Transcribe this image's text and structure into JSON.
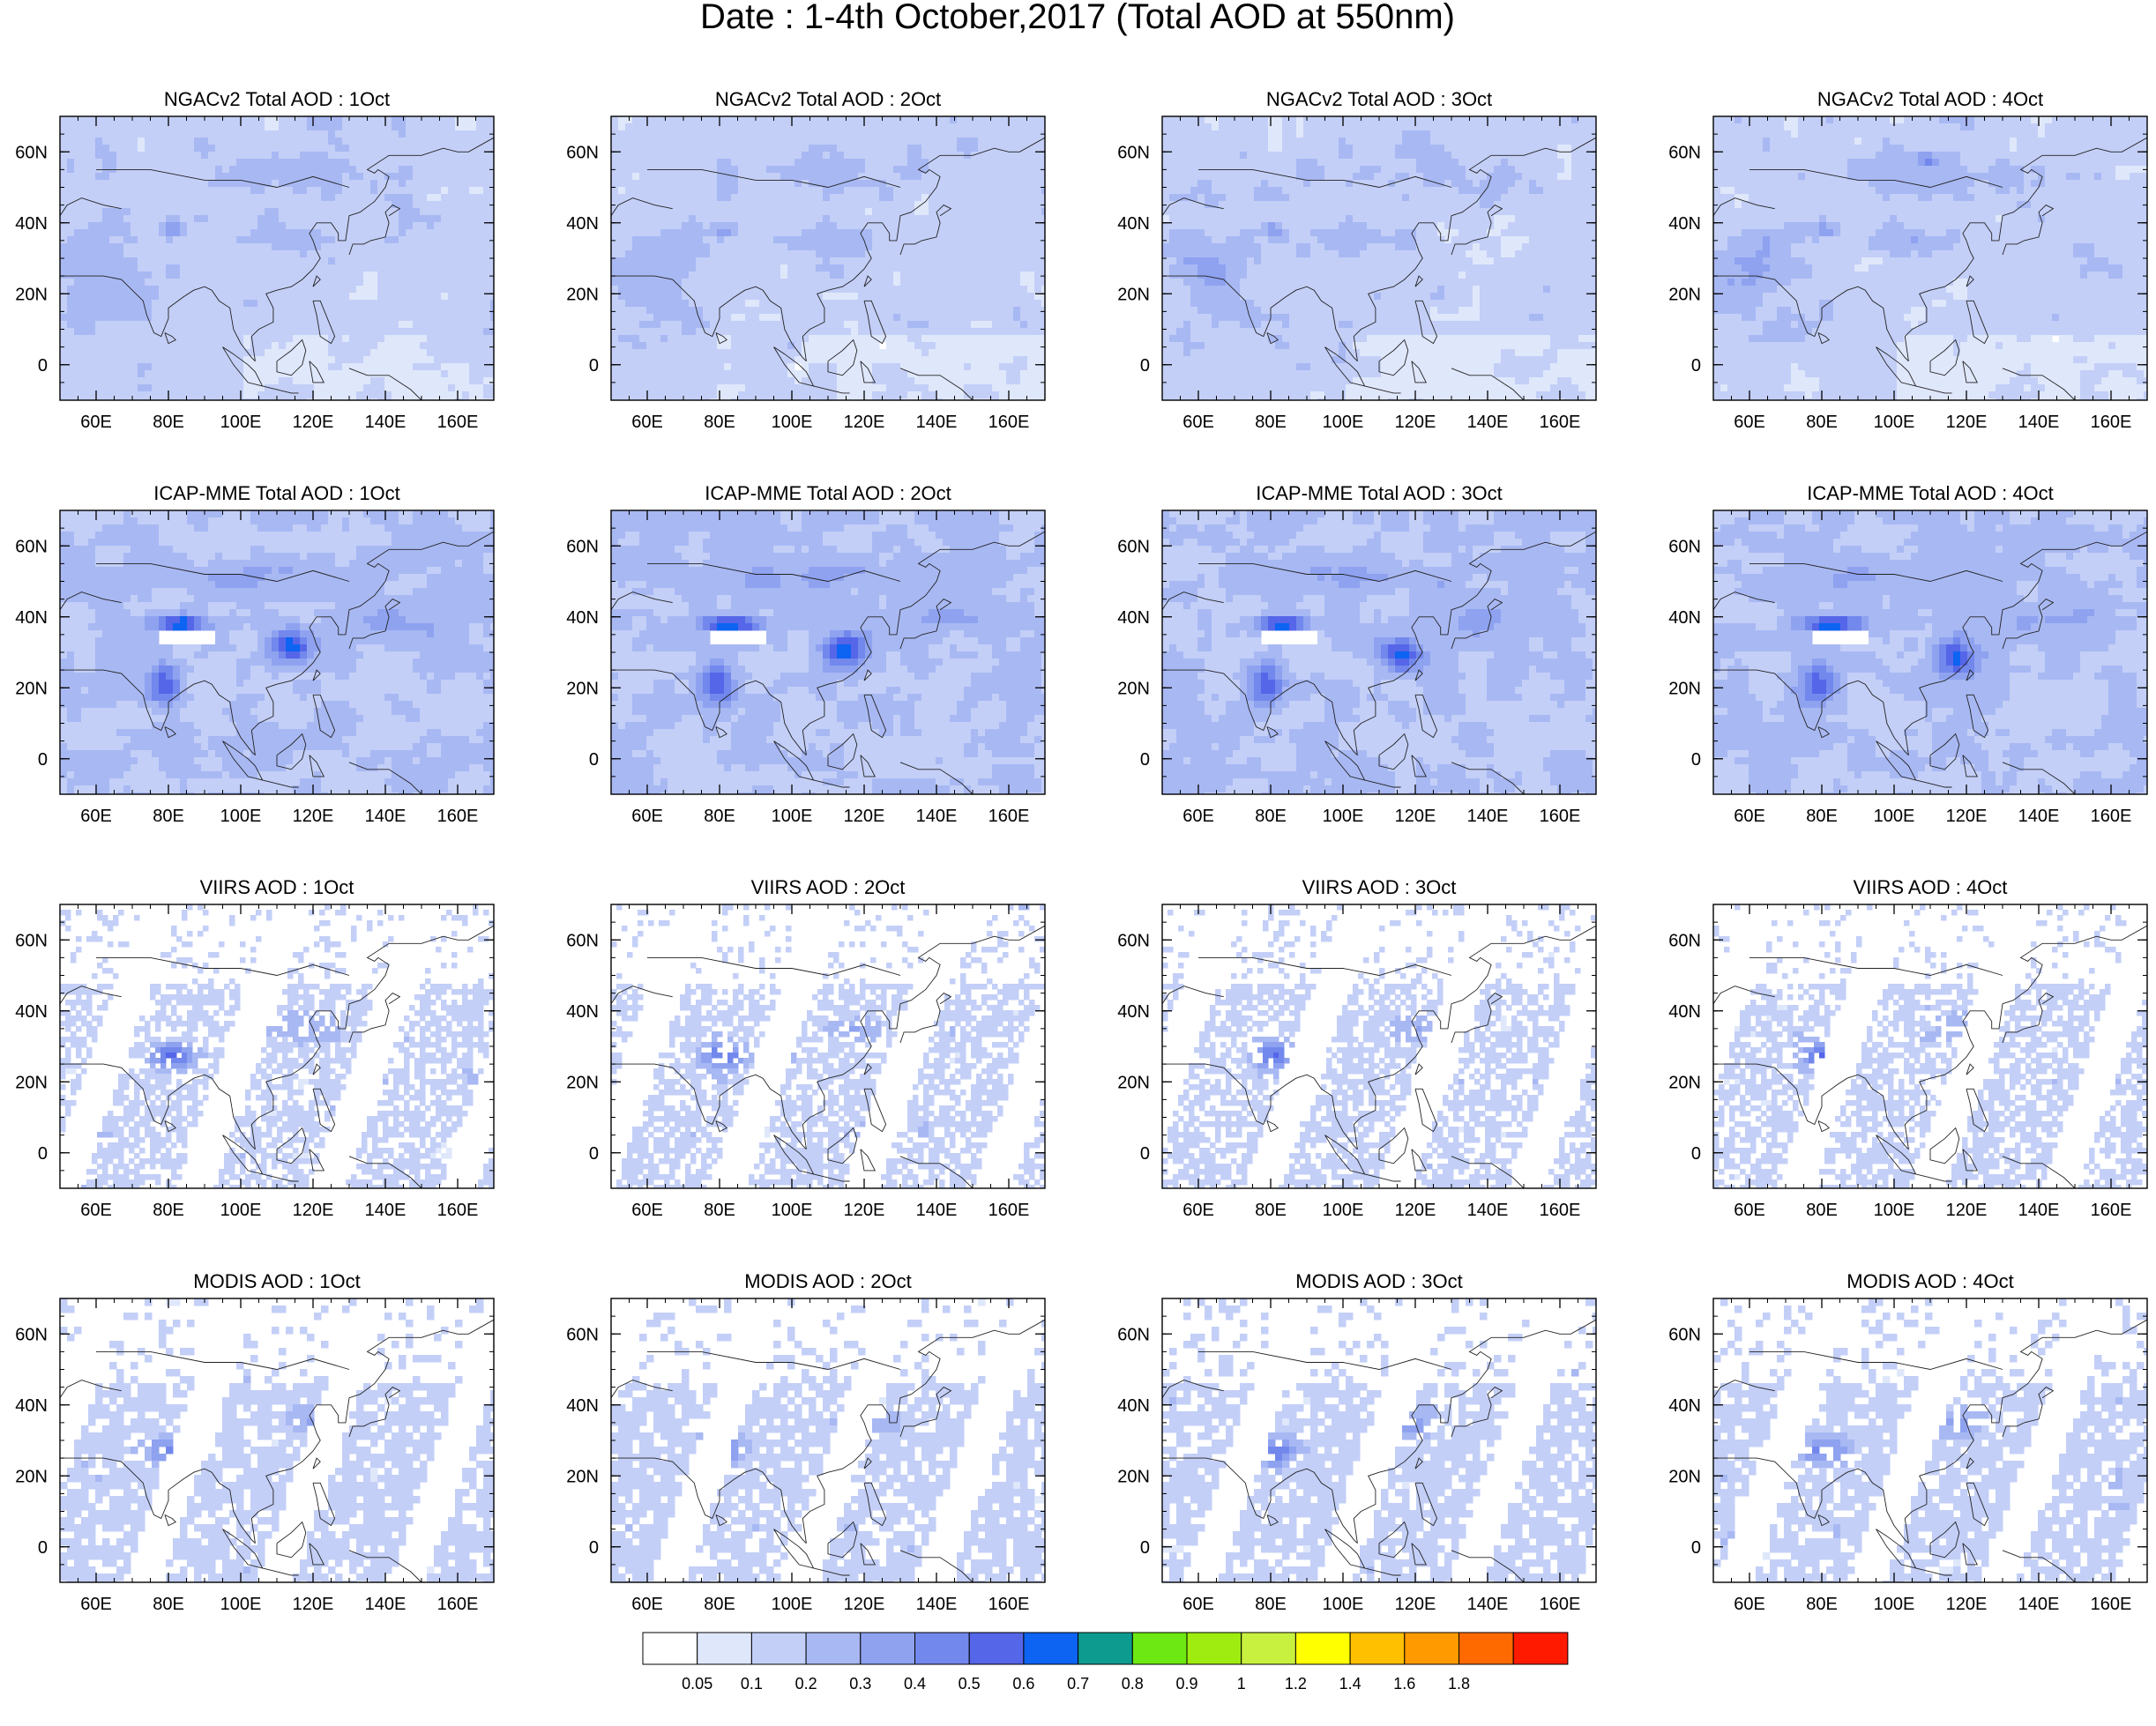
{
  "figure_title": "Date : 1-4th October,2017 (Total AOD at 550nm)",
  "panels": [
    {
      "title": "NGACv2 Total AOD : 1Oct",
      "row": 0,
      "style": "model",
      "seed": 11
    },
    {
      "title": "NGACv2 Total AOD : 2Oct",
      "row": 0,
      "style": "model",
      "seed": 12
    },
    {
      "title": "NGACv2 Total AOD : 3Oct",
      "row": 0,
      "style": "model",
      "seed": 13
    },
    {
      "title": "NGACv2 Total AOD : 4Oct",
      "row": 0,
      "style": "model",
      "seed": 14
    },
    {
      "title": "ICAP-MME Total AOD : 1Oct",
      "row": 1,
      "style": "ensemble",
      "seed": 21
    },
    {
      "title": "ICAP-MME Total AOD : 2Oct",
      "row": 1,
      "style": "ensemble",
      "seed": 22
    },
    {
      "title": "ICAP-MME Total AOD : 3Oct",
      "row": 1,
      "style": "ensemble",
      "seed": 23
    },
    {
      "title": "ICAP-MME Total AOD : 4Oct",
      "row": 1,
      "style": "ensemble",
      "seed": 24
    },
    {
      "title": "VIIRS AOD : 1Oct",
      "row": 2,
      "style": "viirs",
      "seed": 31
    },
    {
      "title": "VIIRS AOD : 2Oct",
      "row": 2,
      "style": "viirs",
      "seed": 32
    },
    {
      "title": "VIIRS AOD : 3Oct",
      "row": 2,
      "style": "viirs",
      "seed": 33
    },
    {
      "title": "VIIRS AOD : 4Oct",
      "row": 2,
      "style": "viirs",
      "seed": 34
    },
    {
      "title": "MODIS AOD : 1Oct",
      "row": 3,
      "style": "modis",
      "seed": 41
    },
    {
      "title": "MODIS AOD : 2Oct",
      "row": 3,
      "style": "modis",
      "seed": 42
    },
    {
      "title": "MODIS AOD : 3Oct",
      "row": 3,
      "style": "modis",
      "seed": 43
    },
    {
      "title": "MODIS AOD : 4Oct",
      "row": 3,
      "style": "modis",
      "seed": 44
    }
  ],
  "map": {
    "lon_range": [
      50,
      170
    ],
    "lat_range": [
      -10,
      70
    ],
    "lon_ticks": [
      60,
      80,
      100,
      120,
      140,
      160
    ],
    "lon_tick_labels": [
      "60E",
      "80E",
      "100E",
      "120E",
      "140E",
      "160E"
    ],
    "lat_ticks": [
      0,
      20,
      40,
      60
    ],
    "lat_tick_labels": [
      "0",
      "20N",
      "40N",
      "60N"
    ]
  },
  "colorbar": {
    "labels": [
      "0.05",
      "0.1",
      "0.2",
      "0.3",
      "0.4",
      "0.5",
      "0.6",
      "0.7",
      "0.8",
      "0.9",
      "1",
      "1.2",
      "1.4",
      "1.6",
      "1.8"
    ],
    "colors": [
      "#ffffff",
      "#dfe7fb",
      "#c3cff7",
      "#a8b8f3",
      "#8ea2f0",
      "#7288ec",
      "#5566e8",
      "#0d63f2",
      "#0d9a8f",
      "#6ee812",
      "#9eec10",
      "#c8f03f",
      "#ffff00",
      "#ffc000",
      "#ff9b00",
      "#ff6a00",
      "#ff1a00"
    ]
  }
}
